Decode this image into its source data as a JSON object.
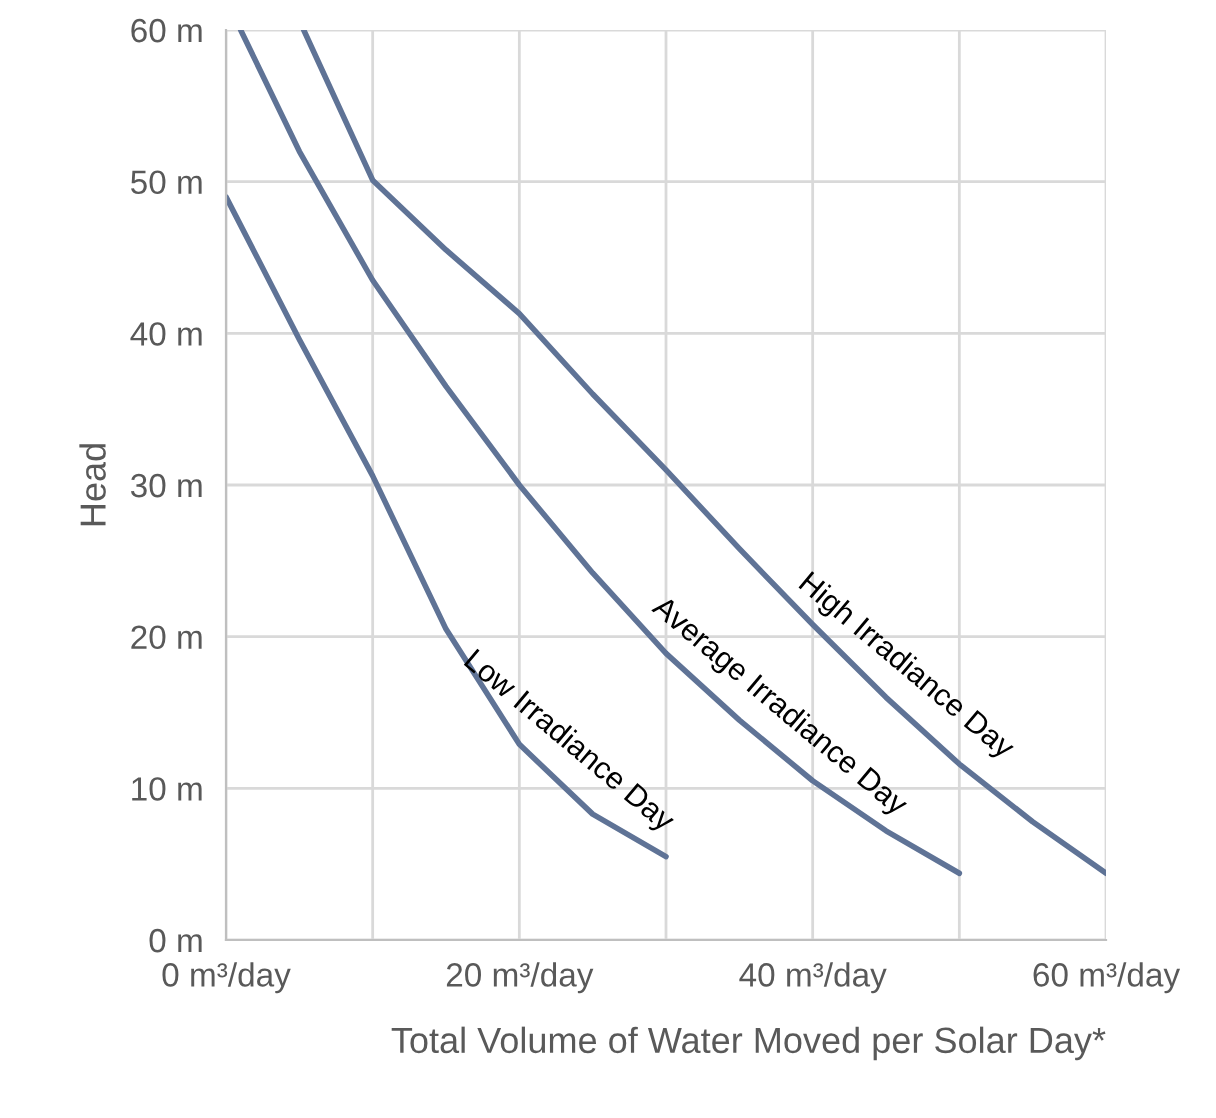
{
  "chart_data": {
    "type": "line",
    "xlabel": "Total Volume of Water Moved per Solar Day*",
    "ylabel": "Head",
    "xlim": [
      0,
      60
    ],
    "ylim": [
      0,
      60
    ],
    "xticks": [
      {
        "value": 0,
        "label": "0 m³/day"
      },
      {
        "value": 10,
        "label": null
      },
      {
        "value": 20,
        "label": "20 m³/day"
      },
      {
        "value": 30,
        "label": null
      },
      {
        "value": 40,
        "label": "40 m³/day"
      },
      {
        "value": 50,
        "label": null
      },
      {
        "value": 60,
        "label": "60 m³/day"
      }
    ],
    "yticks": [
      {
        "value": 0,
        "label": "0 m"
      },
      {
        "value": 10,
        "label": "10 m"
      },
      {
        "value": 20,
        "label": "20 m"
      },
      {
        "value": 30,
        "label": "30 m"
      },
      {
        "value": 40,
        "label": "40 m"
      },
      {
        "value": 50,
        "label": "50 m"
      },
      {
        "value": 60,
        "label": "60 m"
      }
    ],
    "grid": true,
    "line_style": "solid",
    "marker": "none",
    "series": [
      {
        "color": "#5f7396",
        "x": [
          0,
          5,
          10,
          15,
          20,
          25,
          30
        ],
        "values": [
          49,
          39.6,
          30.6,
          20.5,
          12.9,
          8.3,
          5.5
        ]
      },
      {
        "color": "#5f7396",
        "x": [
          1,
          5,
          10,
          15,
          20,
          25,
          30,
          35,
          40,
          45,
          50
        ],
        "values": [
          60,
          52,
          43.5,
          36.5,
          30,
          24.2,
          18.9,
          14.5,
          10.5,
          7.2,
          4.4
        ]
      },
      {
        "color": "#5f7396",
        "x": [
          5.3,
          10,
          15,
          20,
          25,
          30,
          35,
          40,
          45,
          50,
          55,
          60
        ],
        "values": [
          60,
          50.1,
          45.5,
          41.3,
          36,
          31,
          25.8,
          20.8,
          16,
          11.6,
          7.8,
          4.4
        ]
      }
    ],
    "annotations": [
      "Low Irradiance Day",
      "Average Irradiance Day",
      "High Irradiance Day"
    ]
  }
}
